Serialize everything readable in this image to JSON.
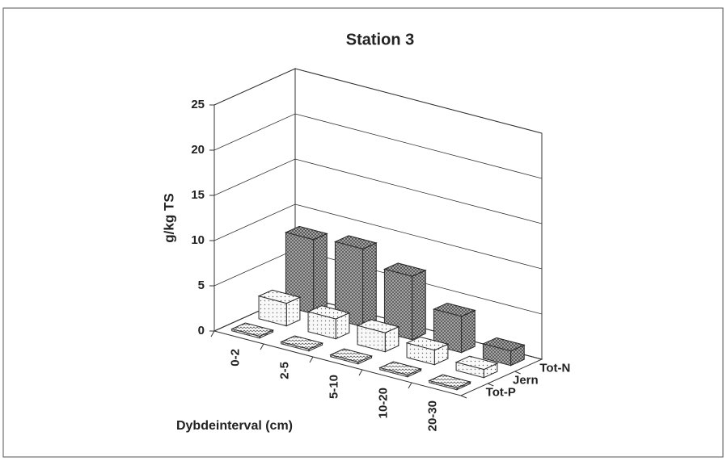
{
  "chart_data": {
    "type": "bar3d",
    "title": "Station 3",
    "y_label": "g/kg TS",
    "x_label": "Dybdeinterval (cm)",
    "categories": [
      "0-2",
      "2-5",
      "5-10",
      "10-20",
      "20-30"
    ],
    "series": [
      {
        "name": "Tot-P",
        "color": "#ffffff",
        "values": [
          0.2,
          0.2,
          0.2,
          0.2,
          0.2
        ]
      },
      {
        "name": "Jern",
        "color": "#f4f4f4",
        "values": [
          2.5,
          2.2,
          2.1,
          1.6,
          0.9
        ]
      },
      {
        "name": "Tot-N",
        "color": "#a8a8a8",
        "values": [
          8.2,
          8.6,
          7.0,
          4.0,
          1.6
        ]
      }
    ],
    "ylim": [
      0,
      25
    ],
    "yticks": [
      0,
      5,
      10,
      15,
      20,
      25
    ],
    "grid": true
  }
}
